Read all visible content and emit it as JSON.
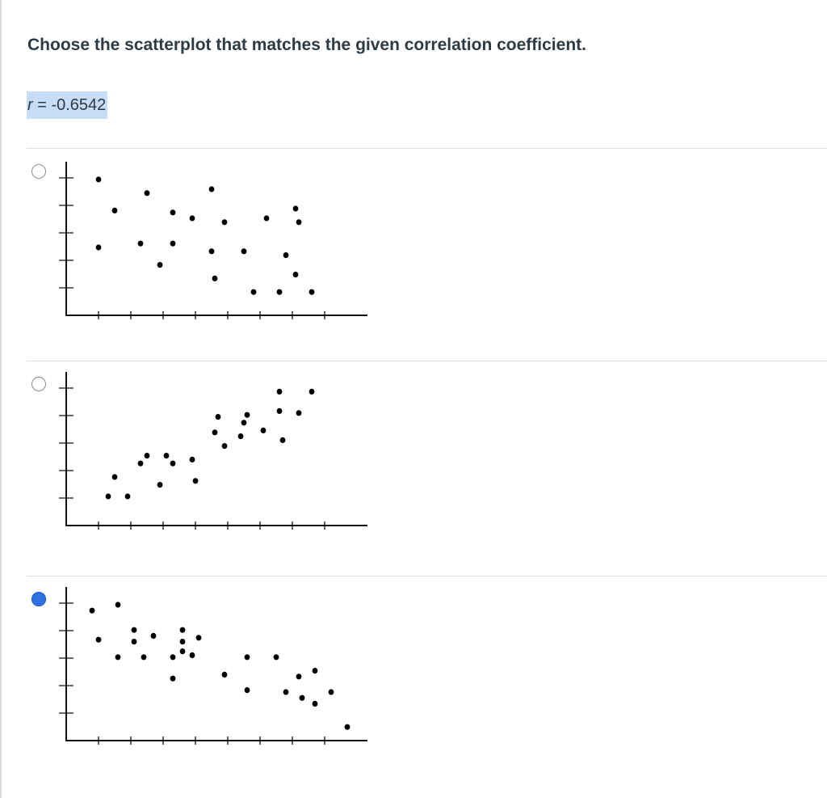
{
  "question": {
    "title": "Choose the scatterplot that matches the given correlation coefficient.",
    "r_variable": "r",
    "r_equals": " = -0.6542"
  },
  "options": [
    {
      "selected": false,
      "points": [
        [
          1.0,
          7.0
        ],
        [
          1.0,
          3.5
        ],
        [
          1.5,
          5.4
        ],
        [
          2.3,
          3.7
        ],
        [
          2.5,
          6.3
        ],
        [
          2.9,
          2.6
        ],
        [
          3.3,
          5.3
        ],
        [
          3.3,
          3.7
        ],
        [
          3.9,
          5.0
        ],
        [
          4.5,
          6.5
        ],
        [
          4.5,
          3.3
        ],
        [
          4.6,
          1.9
        ],
        [
          4.9,
          4.8
        ],
        [
          5.5,
          3.3
        ],
        [
          5.8,
          1.2
        ],
        [
          6.2,
          5.0
        ],
        [
          6.6,
          1.2
        ],
        [
          6.8,
          3.1
        ],
        [
          7.1,
          5.5
        ],
        [
          7.2,
          4.8
        ],
        [
          7.1,
          2.1
        ],
        [
          7.6,
          1.2
        ]
      ]
    },
    {
      "selected": false,
      "points": [
        [
          1.3,
          1.5
        ],
        [
          1.5,
          2.5
        ],
        [
          1.9,
          1.5
        ],
        [
          2.3,
          3.2
        ],
        [
          2.5,
          3.6
        ],
        [
          2.9,
          2.1
        ],
        [
          3.1,
          3.6
        ],
        [
          3.3,
          3.2
        ],
        [
          3.9,
          3.4
        ],
        [
          4.0,
          2.3
        ],
        [
          4.6,
          4.8
        ],
        [
          4.7,
          5.6
        ],
        [
          4.9,
          4.1
        ],
        [
          5.4,
          4.6
        ],
        [
          5.5,
          5.3
        ],
        [
          5.6,
          5.7
        ],
        [
          6.1,
          4.9
        ],
        [
          6.6,
          5.9
        ],
        [
          6.7,
          4.4
        ],
        [
          6.6,
          6.9
        ],
        [
          7.2,
          5.8
        ],
        [
          7.6,
          6.9
        ]
      ]
    },
    {
      "selected": true,
      "points": [
        [
          0.8,
          6.7
        ],
        [
          1.0,
          5.2
        ],
        [
          1.6,
          7.0
        ],
        [
          1.6,
          4.3
        ],
        [
          2.1,
          5.7
        ],
        [
          2.1,
          5.1
        ],
        [
          2.4,
          4.3
        ],
        [
          2.7,
          5.4
        ],
        [
          3.3,
          4.3
        ],
        [
          3.3,
          3.2
        ],
        [
          3.6,
          5.7
        ],
        [
          3.6,
          5.1
        ],
        [
          3.6,
          4.6
        ],
        [
          3.9,
          4.4
        ],
        [
          4.1,
          5.3
        ],
        [
          4.9,
          3.4
        ],
        [
          5.6,
          4.3
        ],
        [
          5.6,
          2.6
        ],
        [
          6.5,
          4.3
        ],
        [
          6.8,
          2.5
        ],
        [
          7.2,
          3.3
        ],
        [
          7.3,
          2.2
        ],
        [
          7.7,
          3.6
        ],
        [
          7.7,
          1.9
        ],
        [
          8.2,
          2.5
        ],
        [
          8.7,
          0.7
        ]
      ]
    }
  ]
}
